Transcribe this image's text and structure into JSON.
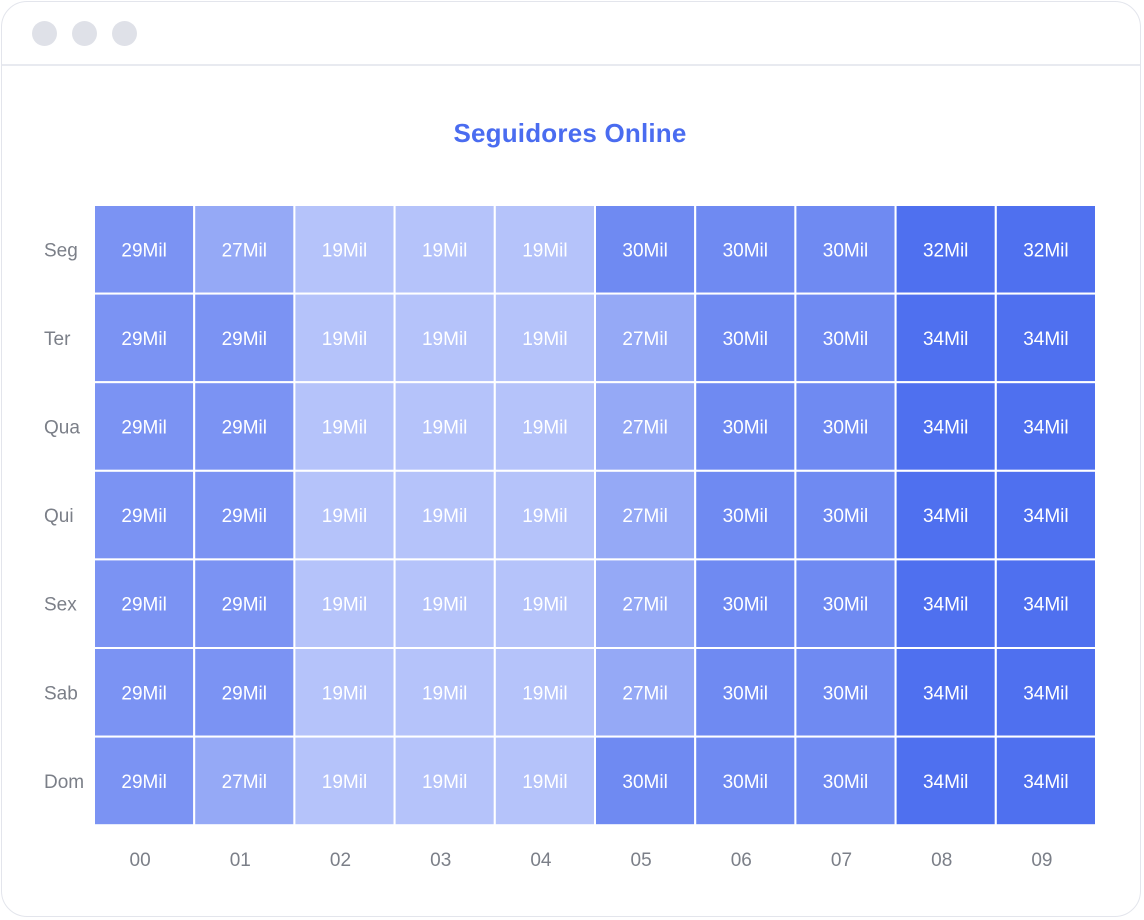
{
  "window": {
    "controls": [
      "close",
      "minimize",
      "maximize"
    ]
  },
  "chart_data": {
    "type": "heatmap",
    "title": "Seguidores Online",
    "x": [
      "00",
      "01",
      "02",
      "03",
      "04",
      "05",
      "06",
      "07",
      "08",
      "09"
    ],
    "y": [
      "Seg",
      "Ter",
      "Qua",
      "Qui",
      "Sex",
      "Sab",
      "Dom"
    ],
    "values": [
      [
        29,
        27,
        19,
        19,
        19,
        30,
        30,
        30,
        32,
        32
      ],
      [
        29,
        29,
        19,
        19,
        19,
        27,
        30,
        30,
        34,
        34
      ],
      [
        29,
        29,
        19,
        19,
        19,
        27,
        30,
        30,
        34,
        34
      ],
      [
        29,
        29,
        19,
        19,
        19,
        27,
        30,
        30,
        34,
        34
      ],
      [
        29,
        29,
        19,
        19,
        19,
        27,
        30,
        30,
        34,
        34
      ],
      [
        29,
        29,
        19,
        19,
        19,
        27,
        30,
        30,
        34,
        34
      ],
      [
        29,
        27,
        19,
        19,
        19,
        30,
        30,
        30,
        34,
        34
      ]
    ],
    "value_suffix": "Mil",
    "color_scale": {
      "19": "#b5c3fa",
      "27": "#95a9f6",
      "29": "#7b93f3",
      "30": "#6f8af2",
      "32": "#4f70ef",
      "34": "#4f70ef"
    },
    "legend": "none"
  }
}
